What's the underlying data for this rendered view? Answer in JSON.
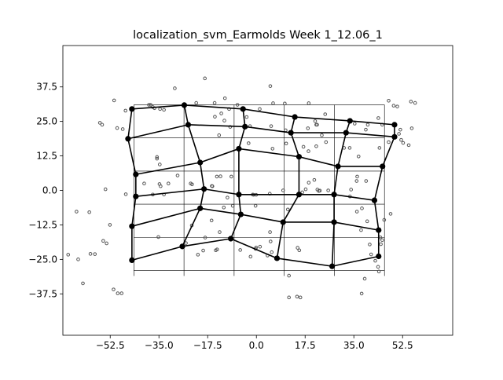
{
  "chart_data": {
    "type": "scatter",
    "title": "localization_svm_Earmolds Week 1_12.06_1",
    "xlabel": "",
    "ylabel": "",
    "xlim": [
      -69.5,
      70.5
    ],
    "ylim": [
      -52.5,
      52.5
    ],
    "xticks": [
      -52.5,
      -35.0,
      -17.5,
      0.0,
      17.5,
      35.0,
      52.5
    ],
    "yticks": [
      -37.5,
      -25.0,
      -12.5,
      0.0,
      12.5,
      25.0,
      37.5
    ],
    "xtick_labels": [
      "−52.5",
      "−35.0",
      "−17.5",
      "0.0",
      "17.5",
      "35.0",
      "52.5"
    ],
    "ytick_labels": [
      "−37.5",
      "−25.0",
      "−12.5",
      "0.0",
      "12.5",
      "25.0",
      "37.5"
    ],
    "grid": false,
    "legend": "none",
    "reference_grid": {
      "x_lines": [
        -44,
        -26,
        -8,
        10,
        28,
        46
      ],
      "y_lines": [
        31,
        19,
        7,
        -5,
        -17,
        -29
      ],
      "x_range": [
        -44,
        46
      ],
      "y_range": [
        -31,
        31
      ]
    },
    "node_grid": [
      [
        [
          -44.7,
          29.5
        ],
        [
          -25.9,
          30.9
        ],
        [
          -4.8,
          29.5
        ],
        [
          13.8,
          26.6
        ],
        [
          33.6,
          25.2
        ],
        [
          49.6,
          23.8
        ]
      ],
      [
        [
          -46.1,
          18.7
        ],
        [
          -24.5,
          23.8
        ],
        [
          -4.1,
          23.1
        ],
        [
          12.4,
          20.9
        ],
        [
          32.2,
          20.9
        ],
        [
          49.6,
          19.4
        ]
      ],
      [
        [
          -43.3,
          5.8
        ],
        [
          -20.2,
          10.1
        ],
        [
          -6.3,
          15.1
        ],
        [
          15.3,
          12.2
        ],
        [
          29.3,
          8.7
        ],
        [
          45.3,
          8.7
        ]
      ],
      [
        [
          -43.3,
          -2.2
        ],
        [
          -18.8,
          0.5
        ],
        [
          -6.3,
          -1.5
        ],
        [
          15.3,
          -1.5
        ],
        [
          27.9,
          -1.5
        ],
        [
          42.4,
          -3.6
        ]
      ],
      [
        [
          -44.7,
          -13.0
        ],
        [
          -20.2,
          -6.5
        ],
        [
          -5.6,
          -8.7
        ],
        [
          9.6,
          -11.5
        ],
        [
          27.9,
          -11.5
        ],
        [
          43.9,
          -14.4
        ]
      ],
      [
        [
          -44.7,
          -25.3
        ],
        [
          -26.6,
          -20.3
        ],
        [
          -9.2,
          -17.5
        ],
        [
          7.4,
          -24.6
        ],
        [
          27.2,
          -27.5
        ],
        [
          43.9,
          -23.9
        ]
      ]
    ],
    "scatter_points": [
      [
        -29.3,
        37.0
      ],
      [
        -18.5,
        40.6
      ],
      [
        -11.3,
        33.4
      ],
      [
        -15.0,
        31.7
      ],
      [
        -21.6,
        31.7
      ],
      [
        -6.8,
        31.0
      ],
      [
        5.0,
        37.8
      ],
      [
        -34.6,
        29.5
      ],
      [
        -36.6,
        29.8
      ],
      [
        -38.6,
        31.0
      ],
      [
        -37.2,
        30.2
      ],
      [
        -33.2,
        29.2
      ],
      [
        -9.8,
        29.5
      ],
      [
        -12.6,
        27.9
      ],
      [
        -11.5,
        25.3
      ],
      [
        -14.9,
        26.7
      ],
      [
        -3.5,
        26.6
      ],
      [
        6.0,
        31.6
      ],
      [
        10.2,
        31.5
      ],
      [
        18.8,
        31.6
      ],
      [
        24.7,
        27.6
      ],
      [
        35.3,
        24.2
      ],
      [
        40.0,
        23.8
      ],
      [
        43.8,
        26.2
      ],
      [
        45.2,
        23.8
      ],
      [
        -51.1,
        32.6
      ],
      [
        -47.0,
        28.9
      ],
      [
        -48.0,
        22.2
      ],
      [
        -50.0,
        22.6
      ],
      [
        -55.4,
        23.8
      ],
      [
        -56.2,
        24.5
      ],
      [
        -38.0,
        31.0
      ],
      [
        1.2,
        29.5
      ],
      [
        21.8,
        23.8
      ],
      [
        21.1,
        25.1
      ],
      [
        -2.3,
        23.3
      ],
      [
        -9.4,
        23.0
      ],
      [
        5.3,
        23.3
      ],
      [
        18.5,
        22.5
      ],
      [
        10.5,
        21.8
      ],
      [
        21.5,
        23.8
      ],
      [
        39.3,
        22.0
      ],
      [
        23.5,
        20.0
      ],
      [
        25.0,
        17.5
      ],
      [
        16.9,
        15.8
      ],
      [
        21.5,
        16.0
      ],
      [
        -13.4,
        20.0
      ],
      [
        -2.8,
        17.1
      ],
      [
        10.7,
        17.0
      ],
      [
        5.8,
        15.1
      ],
      [
        33.5,
        15.4
      ],
      [
        44.2,
        15.4
      ],
      [
        47.5,
        17.5
      ],
      [
        52.7,
        17.2
      ],
      [
        -35.7,
        11.5
      ],
      [
        -35.7,
        12.1
      ],
      [
        -34.7,
        9.4
      ],
      [
        -14.2,
        5.0
      ],
      [
        -12.9,
        5.1
      ],
      [
        18.7,
        14.2
      ],
      [
        31.5,
        15.4
      ],
      [
        36.7,
        12.3
      ],
      [
        51.2,
        20.5
      ],
      [
        51.7,
        22.0
      ],
      [
        55.8,
        22.5
      ],
      [
        54.7,
        16.4
      ],
      [
        52.0,
        18.3
      ],
      [
        47.5,
        32.5
      ],
      [
        49.3,
        30.7
      ],
      [
        50.6,
        30.4
      ],
      [
        55.5,
        32.2
      ],
      [
        57.0,
        31.7
      ],
      [
        -31.6,
        2.5
      ],
      [
        -34.8,
        2.3
      ],
      [
        -34.4,
        1.5
      ],
      [
        -23.1,
        2.2
      ],
      [
        -16.0,
        1.6
      ],
      [
        -18.8,
        0.8
      ],
      [
        -15.8,
        1.5
      ],
      [
        -10.4,
        -2.6
      ],
      [
        -23.6,
        2.5
      ],
      [
        -40.3,
        2.5
      ],
      [
        -28.3,
        5.4
      ],
      [
        -9.0,
        5.0
      ],
      [
        -1.0,
        -1.6
      ],
      [
        -0.1,
        -1.6
      ],
      [
        4.8,
        -1.2
      ],
      [
        9.6,
        0.0
      ],
      [
        22.8,
        -0.1
      ],
      [
        25.8,
        0.0
      ],
      [
        22.4,
        -0.2
      ],
      [
        21.9,
        0.3
      ],
      [
        17.7,
        0.4
      ],
      [
        16.5,
        -0.7
      ],
      [
        18.8,
        2.8
      ],
      [
        20.8,
        3.8
      ],
      [
        36.0,
        3.4
      ],
      [
        39.4,
        3.4
      ],
      [
        36.2,
        5.0
      ],
      [
        33.6,
        -2.2
      ],
      [
        34.0,
        0.3
      ],
      [
        -37.2,
        -1.5
      ],
      [
        -54.2,
        0.4
      ],
      [
        -64.6,
        -7.7
      ],
      [
        -60.0,
        -7.9
      ],
      [
        -52.6,
        -12.5
      ],
      [
        -46.9,
        -1.4
      ],
      [
        -33.2,
        -1.5
      ],
      [
        -11.7,
        -6.2
      ],
      [
        -8.5,
        -5.6
      ],
      [
        -1.3,
        -1.5
      ],
      [
        -0.3,
        -5.6
      ],
      [
        11.3,
        -6.9
      ],
      [
        4.9,
        -15.1
      ],
      [
        -13.2,
        -15.1
      ],
      [
        -16.1,
        -10.9
      ],
      [
        -18.4,
        -17.1
      ],
      [
        -35.2,
        -16.9
      ],
      [
        -23.2,
        -12.7
      ],
      [
        -25.3,
        -19.1
      ],
      [
        -21.0,
        -23.3
      ],
      [
        -19.1,
        -21.8
      ],
      [
        -14.1,
        -21.4
      ],
      [
        -0.3,
        -21.2
      ],
      [
        -2.1,
        -24.0
      ],
      [
        -0.1,
        -20.7
      ],
      [
        1.3,
        -20.4
      ],
      [
        5.1,
        -18.5
      ],
      [
        4.0,
        -23.6
      ],
      [
        14.8,
        -20.8
      ],
      [
        15.4,
        -21.7
      ],
      [
        -14.6,
        -21.7
      ],
      [
        -5.8,
        -21.6
      ],
      [
        5.5,
        -22.4
      ],
      [
        36.1,
        -7.7
      ],
      [
        37.9,
        -6.5
      ],
      [
        39.8,
        -11.2
      ],
      [
        44.5,
        -17.0
      ],
      [
        45.2,
        -18.0
      ],
      [
        44.7,
        -19.5
      ],
      [
        37.6,
        -14.4
      ],
      [
        45.9,
        -10.7
      ],
      [
        48.2,
        -8.5
      ],
      [
        40.7,
        -19.6
      ],
      [
        41.2,
        -23.2
      ],
      [
        42.7,
        -25.5
      ],
      [
        43.7,
        -27.7
      ],
      [
        44.0,
        -29.4
      ],
      [
        38.9,
        -32.0
      ],
      [
        37.8,
        -37.4
      ],
      [
        11.7,
        -30.9
      ],
      [
        14.6,
        -38.5
      ],
      [
        15.8,
        -38.8
      ],
      [
        11.7,
        -38.8
      ],
      [
        -51.3,
        -35.9
      ],
      [
        -48.4,
        -37.3
      ],
      [
        -49.8,
        -37.3
      ],
      [
        -53.8,
        -19.2
      ],
      [
        -58.0,
        -23.1
      ],
      [
        -62.3,
        -33.7
      ],
      [
        -67.6,
        -23.3
      ],
      [
        -64.0,
        -25.0
      ],
      [
        -59.6,
        -23.0
      ],
      [
        -55.0,
        -18.3
      ]
    ]
  }
}
